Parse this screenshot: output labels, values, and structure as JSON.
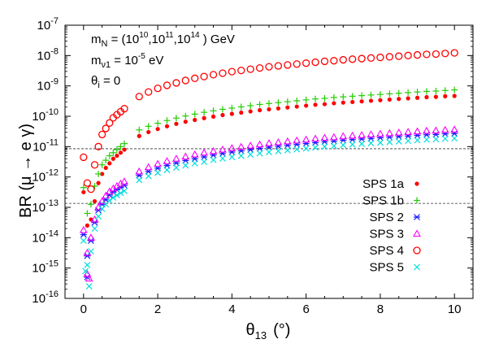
{
  "chart_data": {
    "type": "scatter",
    "title": "",
    "xlabel": "θ",
    "xlabel_sub": "13",
    "xlabel_unit": "(°)",
    "ylabel": "BR (μ → e γ)",
    "xlim": [
      -0.5,
      10.5
    ],
    "ylim_log10": [
      -16,
      -7
    ],
    "y_scale": "log",
    "x_ticks": [
      0,
      2,
      4,
      6,
      8,
      10
    ],
    "x_tick_labels": [
      "0",
      "2",
      "4",
      "6",
      "8",
      "10"
    ],
    "y_tick_exponents": [
      -16,
      -15,
      -14,
      -13,
      -12,
      -11,
      -10,
      -9,
      -8,
      -7
    ],
    "y_tick_base": "10",
    "reference_lines_log10": [
      -11.07,
      -12.87
    ],
    "annotations": {
      "line1_prefix": "m",
      "line1_sub": "N",
      "line1_text_a": " = (10",
      "line1_exp1": "10",
      "line1_text_b": ",10",
      "line1_exp2": "11",
      "line1_text_c": ",10",
      "line1_exp3": "14",
      "line1_text_d": " ) GeV",
      "line2_prefix": "m",
      "line2_sub": "ν1",
      "line2_text": " = 10",
      "line2_exp": "-5",
      "line2_unit": " eV",
      "line3_prefix": "θ",
      "line3_sub": "i",
      "line3_text": " = 0"
    },
    "legend_position": "right-middle",
    "x": [
      0.0,
      0.1,
      0.2,
      0.3,
      0.4,
      0.5,
      0.6,
      0.7,
      0.8,
      0.9,
      1.0,
      1.1,
      1.5,
      1.75,
      2.0,
      2.25,
      2.5,
      2.75,
      3.0,
      3.25,
      3.5,
      3.75,
      4.0,
      4.25,
      4.5,
      4.75,
      5.0,
      5.25,
      5.5,
      5.75,
      6.0,
      6.25,
      6.5,
      6.75,
      7.0,
      7.25,
      7.5,
      7.75,
      8.0,
      8.25,
      8.5,
      8.75,
      9.0,
      9.25,
      9.5,
      9.75,
      10.0
    ],
    "series": [
      {
        "name": "SPS 1a",
        "marker": "dot",
        "color": "#ff0000",
        "y_log10": [
          -12.5,
          -13.6,
          -13.4,
          -12.8,
          -12.2,
          -11.9,
          -11.7,
          -11.55,
          -11.4,
          -11.3,
          -11.2,
          -11.1,
          -10.65,
          -10.52,
          -10.42,
          -10.33,
          -10.25,
          -10.18,
          -10.12,
          -10.06,
          -10.01,
          -9.96,
          -9.92,
          -9.88,
          -9.84,
          -9.8,
          -9.77,
          -9.74,
          -9.71,
          -9.68,
          -9.65,
          -9.62,
          -9.6,
          -9.57,
          -9.55,
          -9.53,
          -9.51,
          -9.49,
          -9.47,
          -9.45,
          -9.43,
          -9.41,
          -9.39,
          -9.37,
          -9.36,
          -9.34,
          -9.33
        ]
      },
      {
        "name": "SPS 1b",
        "marker": "plus",
        "color": "#22cc00",
        "y_log10": [
          -12.35,
          -13.2,
          -12.9,
          -12.3,
          -11.9,
          -11.6,
          -11.45,
          -11.3,
          -11.2,
          -11.1,
          -11.0,
          -10.9,
          -10.45,
          -10.33,
          -10.23,
          -10.14,
          -10.06,
          -9.99,
          -9.93,
          -9.87,
          -9.82,
          -9.77,
          -9.73,
          -9.69,
          -9.65,
          -9.61,
          -9.58,
          -9.55,
          -9.52,
          -9.49,
          -9.46,
          -9.43,
          -9.41,
          -9.38,
          -9.36,
          -9.34,
          -9.32,
          -9.3,
          -9.28,
          -9.26,
          -9.24,
          -9.22,
          -9.2,
          -9.18,
          -9.17,
          -9.15,
          -9.13
        ]
      },
      {
        "name": "SPS 2",
        "marker": "star",
        "color": "#1a1aff",
        "y_log10": [
          -13.9,
          -14.6,
          -14.1,
          -13.5,
          -13.1,
          -12.9,
          -12.75,
          -12.6,
          -12.5,
          -12.42,
          -12.35,
          -12.28,
          -11.95,
          -11.82,
          -11.71,
          -11.62,
          -11.54,
          -11.46,
          -11.4,
          -11.34,
          -11.28,
          -11.23,
          -11.18,
          -11.14,
          -11.1,
          -11.06,
          -11.02,
          -10.99,
          -10.96,
          -10.93,
          -10.9,
          -10.87,
          -10.84,
          -10.82,
          -10.79,
          -10.77,
          -10.75,
          -10.73,
          -10.71,
          -10.69,
          -10.67,
          -10.65,
          -10.63,
          -10.61,
          -10.6,
          -10.58,
          -10.57
        ]
      },
      {
        "name": "SPS 3",
        "marker": "triangle",
        "color": "#ff00ff",
        "y_log10": [
          -13.75,
          -14.5,
          -14.0,
          -13.4,
          -13.0,
          -12.8,
          -12.62,
          -12.48,
          -12.38,
          -12.3,
          -12.22,
          -12.15,
          -11.82,
          -11.68,
          -11.57,
          -11.48,
          -11.4,
          -11.33,
          -11.26,
          -11.2,
          -11.15,
          -11.1,
          -11.05,
          -11.01,
          -10.97,
          -10.93,
          -10.89,
          -10.86,
          -10.83,
          -10.8,
          -10.77,
          -10.74,
          -10.71,
          -10.69,
          -10.66,
          -10.64,
          -10.62,
          -10.6,
          -10.58,
          -10.56,
          -10.54,
          -10.52,
          -10.5,
          -10.48,
          -10.47,
          -10.45,
          -10.44
        ]
      },
      {
        "name": "SPS 4",
        "marker": "circle",
        "color": "#ff0000",
        "y_log10": [
          -11.35,
          -12.2,
          -12.4,
          -11.6,
          -11.0,
          -10.6,
          -10.4,
          -10.22,
          -10.05,
          -9.95,
          -9.85,
          -9.75,
          -9.35,
          -9.2,
          -9.08,
          -8.98,
          -8.9,
          -8.82,
          -8.75,
          -8.69,
          -8.63,
          -8.58,
          -8.53,
          -8.49,
          -8.45,
          -8.41,
          -8.37,
          -8.34,
          -8.31,
          -8.28,
          -8.25,
          -8.22,
          -8.19,
          -8.17,
          -8.14,
          -8.12,
          -8.1,
          -8.08,
          -8.06,
          -8.04,
          -8.02,
          -8.0,
          -7.98,
          -7.96,
          -7.95,
          -7.93,
          -7.91
        ]
      },
      {
        "name": "SPS 5",
        "marker": "x",
        "color": "#00dddd",
        "y_log10": [
          -14.1,
          -14.9,
          -14.45,
          -13.7,
          -13.3,
          -13.05,
          -12.9,
          -12.78,
          -12.68,
          -12.6,
          -12.53,
          -12.46,
          -12.1,
          -11.97,
          -11.86,
          -11.77,
          -11.69,
          -11.62,
          -11.55,
          -11.5,
          -11.44,
          -11.39,
          -11.34,
          -11.3,
          -11.26,
          -11.22,
          -11.18,
          -11.15,
          -11.12,
          -11.09,
          -11.06,
          -11.03,
          -11.0,
          -10.98,
          -10.95,
          -10.93,
          -10.91,
          -10.89,
          -10.87,
          -10.85,
          -10.83,
          -10.81,
          -10.79,
          -10.77,
          -10.76,
          -10.74,
          -10.73
        ]
      }
    ],
    "extra_points": [
      {
        "series": "SPS 2",
        "x": 0.1,
        "y_log10": -15.3
      },
      {
        "series": "SPS 3",
        "x": 0.1,
        "y_log10": -15.2
      },
      {
        "series": "SPS 5",
        "x": 0.15,
        "y_log10": -15.6
      },
      {
        "series": "SPS 5",
        "x": 0.05,
        "y_log10": -15.1
      },
      {
        "series": "SPS 3",
        "x": 0.15,
        "y_log10": -15.35
      }
    ]
  }
}
